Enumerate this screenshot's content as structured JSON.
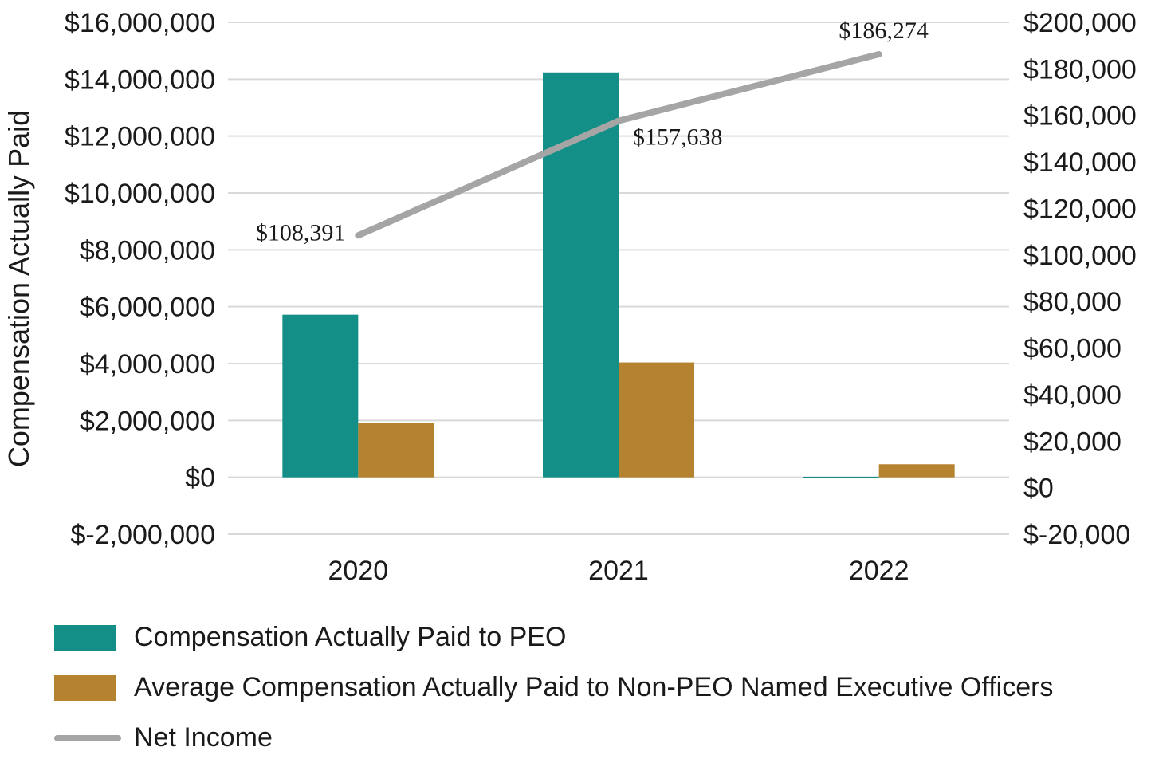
{
  "chart_data": {
    "type": "bar",
    "categories": [
      "2020",
      "2021",
      "2022"
    ],
    "series": [
      {
        "name": "Compensation Actually Paid to PEO",
        "type": "bar",
        "axis": "left",
        "color": "#138f87",
        "values": [
          5720000,
          14240000,
          20000
        ]
      },
      {
        "name": "Average Compensation Actually Paid to Non-PEO Named Executive Officers",
        "type": "bar",
        "axis": "left",
        "color": "#b5832f",
        "values": [
          1900000,
          4040000,
          460000
        ]
      },
      {
        "name": "Net Income",
        "type": "line",
        "axis": "right",
        "color": "#a5a5a5",
        "values": [
          108391,
          157638,
          186274
        ],
        "labels": [
          "$108,391",
          "$157,638",
          "$186,274"
        ]
      }
    ],
    "ylabel": "Compensation Actually Paid",
    "ylim": [
      -2000000,
      16000000
    ],
    "yticks": [
      "$16,000,000",
      "$14,000,000",
      "$12,000,000",
      "$10,000,000",
      "$8,000,000",
      "$6,000,000",
      "$4,000,000",
      "$2,000,000",
      "$0",
      "$-2,000,000"
    ],
    "y2lim": [
      -20000,
      200000
    ],
    "y2ticks": [
      "$200,000",
      "$180,000",
      "$160,000",
      "$140,000",
      "$120,000",
      "$100,000",
      "$80,000",
      "$60,000",
      "$40,000",
      "$20,000",
      "$0",
      "$-20,000"
    ],
    "grid": true,
    "legend": "bottom"
  }
}
